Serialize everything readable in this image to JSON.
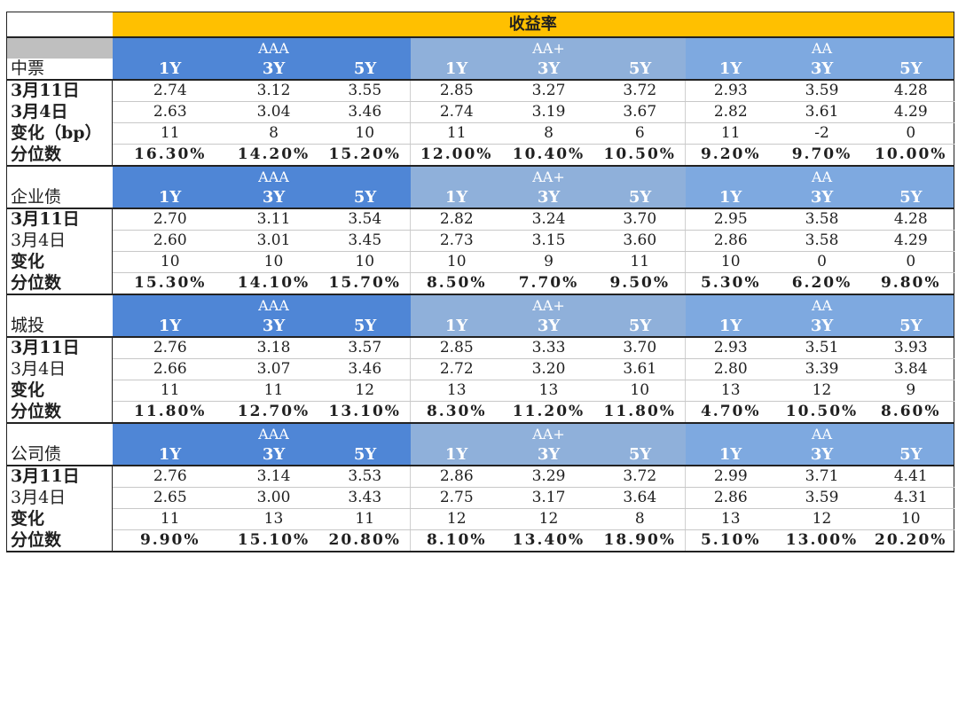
{
  "title": "收益率",
  "tenors": [
    "1Y",
    "3Y",
    "5Y"
  ],
  "ratings": [
    "AAA",
    "AA+",
    "AA"
  ],
  "colors": {
    "title_bg": "#ffc000",
    "aaa_bg": "#4f86d6",
    "aap_bg": "#8fb0da",
    "aa_bg": "#7ea9e0",
    "grey": "#bfbfbf"
  },
  "sections": [
    {
      "name": "中票",
      "rows": [
        {
          "label": "3月11日",
          "label_bold": true,
          "values": [
            "2.74",
            "3.12",
            "3.55",
            "2.85",
            "3.27",
            "3.72",
            "2.93",
            "3.59",
            "4.28"
          ]
        },
        {
          "label": "3月4日",
          "label_bold": true,
          "values": [
            "2.63",
            "3.04",
            "3.46",
            "2.74",
            "3.19",
            "3.67",
            "2.82",
            "3.61",
            "4.29"
          ]
        },
        {
          "label": "变化（bp）",
          "label_bold": true,
          "values": [
            "11",
            "8",
            "10",
            "11",
            "8",
            "6",
            "11",
            "-2",
            "0"
          ]
        },
        {
          "label": "分位数",
          "label_bold": true,
          "values": [
            "16.30%",
            "14.20%",
            "15.20%",
            "12.00%",
            "10.40%",
            "10.50%",
            "9.20%",
            "9.70%",
            "10.00%"
          ]
        }
      ]
    },
    {
      "name": "企业债",
      "rows": [
        {
          "label": "3月11日",
          "label_bold": true,
          "values": [
            "2.70",
            "3.11",
            "3.54",
            "2.82",
            "3.24",
            "3.70",
            "2.95",
            "3.58",
            "4.28"
          ]
        },
        {
          "label": "3月4日",
          "label_bold": false,
          "values": [
            "2.60",
            "3.01",
            "3.45",
            "2.73",
            "3.15",
            "3.60",
            "2.86",
            "3.58",
            "4.29"
          ]
        },
        {
          "label": "变化",
          "label_bold": true,
          "values": [
            "10",
            "10",
            "10",
            "10",
            "9",
            "11",
            "10",
            "0",
            "0"
          ]
        },
        {
          "label": "分位数",
          "label_bold": true,
          "values": [
            "15.30%",
            "14.10%",
            "15.70%",
            "8.50%",
            "7.70%",
            "9.50%",
            "5.30%",
            "6.20%",
            "9.80%"
          ]
        }
      ]
    },
    {
      "name": "城投",
      "rows": [
        {
          "label": "3月11日",
          "label_bold": true,
          "values": [
            "2.76",
            "3.18",
            "3.57",
            "2.85",
            "3.33",
            "3.70",
            "2.93",
            "3.51",
            "3.93"
          ]
        },
        {
          "label": "3月4日",
          "label_bold": false,
          "values": [
            "2.66",
            "3.07",
            "3.46",
            "2.72",
            "3.20",
            "3.61",
            "2.80",
            "3.39",
            "3.84"
          ]
        },
        {
          "label": "变化",
          "label_bold": true,
          "values": [
            "11",
            "11",
            "12",
            "13",
            "13",
            "10",
            "13",
            "12",
            "9"
          ]
        },
        {
          "label": "分位数",
          "label_bold": true,
          "values": [
            "11.80%",
            "12.70%",
            "13.10%",
            "8.30%",
            "11.20%",
            "11.80%",
            "4.70%",
            "10.50%",
            "8.60%"
          ]
        }
      ]
    },
    {
      "name": "公司债",
      "rows": [
        {
          "label": "3月11日",
          "label_bold": true,
          "values": [
            "2.76",
            "3.14",
            "3.53",
            "2.86",
            "3.29",
            "3.72",
            "2.99",
            "3.71",
            "4.41"
          ]
        },
        {
          "label": "3月4日",
          "label_bold": false,
          "values": [
            "2.65",
            "3.00",
            "3.43",
            "2.75",
            "3.17",
            "3.64",
            "2.86",
            "3.59",
            "4.31"
          ]
        },
        {
          "label": "变化",
          "label_bold": true,
          "values": [
            "11",
            "13",
            "11",
            "12",
            "12",
            "8",
            "13",
            "12",
            "10"
          ]
        },
        {
          "label": "分位数",
          "label_bold": true,
          "values": [
            "9.90%",
            "15.10%",
            "20.80%",
            "8.10%",
            "13.40%",
            "18.90%",
            "5.10%",
            "13.00%",
            "20.20%"
          ]
        }
      ]
    }
  ]
}
